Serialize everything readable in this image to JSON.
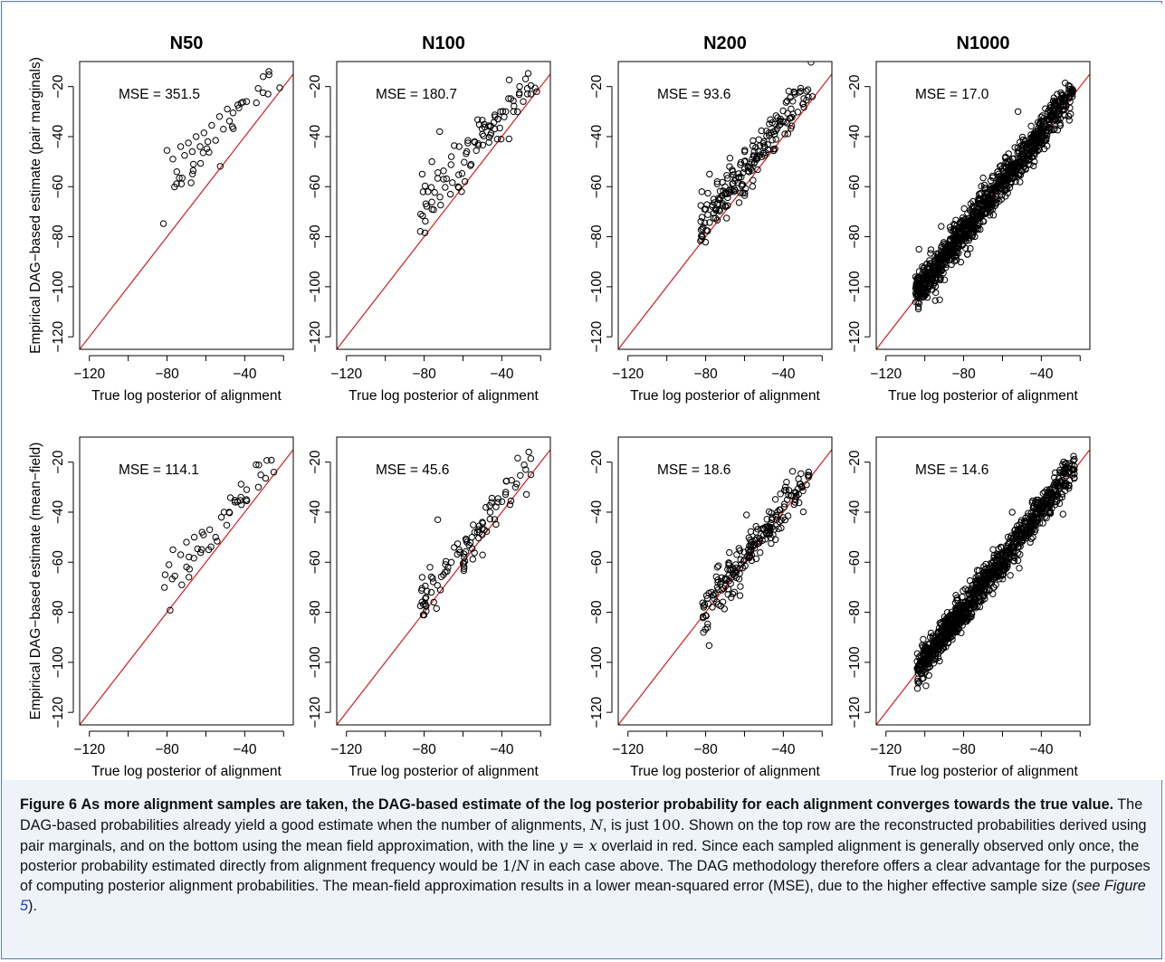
{
  "figure": {
    "column_titles": [
      "N50",
      "N100",
      "N200",
      "N1000"
    ],
    "row_ylabels": [
      "Empirical DAG−based estimate (pair marginals)",
      "Empirical DAG−based estimate (mean−field)"
    ],
    "xlabel": "True log posterior of alignment",
    "x_ticks": [
      "−120",
      "−80",
      "−40"
    ],
    "y_ticks": [
      "−20",
      "−40",
      "−60",
      "−80",
      "−100",
      "−120"
    ],
    "colors": {
      "reference_line": "#e0191c",
      "points": "#000000"
    }
  },
  "chart_data": [
    {
      "type": "scatter",
      "row": "pair marginals",
      "column": "N50",
      "mse_label": "MSE =  351.5",
      "reference_line": "y = x",
      "xlim": [
        -125,
        -15
      ],
      "ylim": [
        -125,
        -10
      ],
      "n_points": 50,
      "x_range": [
        -82,
        -21
      ],
      "center_offset": 14.5,
      "spread": 4.5,
      "samples": [
        [
          -80,
          -45.5
        ],
        [
          -77,
          -49
        ],
        [
          -75,
          -54
        ],
        [
          -73,
          -44
        ],
        [
          -71,
          -47.5
        ],
        [
          -69,
          -42.5
        ],
        [
          -67,
          -46
        ],
        [
          -65,
          -40
        ],
        [
          -63,
          -44
        ],
        [
          -61,
          -38.5
        ],
        [
          -59,
          -42
        ],
        [
          -57,
          -35.5
        ],
        [
          -55,
          -41.5
        ],
        [
          -53,
          -32
        ],
        [
          -51,
          -37
        ],
        [
          -49,
          -29
        ],
        [
          -46,
          -30.5
        ],
        [
          -43,
          -28.5
        ],
        [
          -39,
          -26
        ],
        [
          -34,
          -26.5
        ],
        [
          -28,
          -23
        ],
        [
          -22,
          -20.5
        ]
      ]
    },
    {
      "type": "scatter",
      "row": "pair marginals",
      "column": "N100",
      "mse_label": "MSE =  180.7",
      "reference_line": "y = x",
      "xlim": [
        -125,
        -15
      ],
      "ylim": [
        -125,
        -10
      ],
      "n_points": 100,
      "x_range": [
        -82,
        -22
      ],
      "center_offset": 10,
      "spread": 5,
      "samples": [
        [
          -81,
          -55
        ],
        [
          -78,
          -62
        ],
        [
          -76,
          -50
        ],
        [
          -72,
          -38
        ],
        [
          -70,
          -57
        ],
        [
          -66,
          -48
        ],
        [
          -62,
          -44
        ],
        [
          -58,
          -46
        ],
        [
          -54,
          -42
        ],
        [
          -50,
          -39
        ],
        [
          -46,
          -36
        ],
        [
          -42,
          -33
        ],
        [
          -38,
          -30
        ],
        [
          -34,
          -30
        ],
        [
          -29,
          -26
        ],
        [
          -25,
          -23
        ],
        [
          -22,
          -22
        ]
      ]
    },
    {
      "type": "scatter",
      "row": "pair marginals",
      "column": "N200",
      "mse_label": "MSE =  93.6",
      "reference_line": "y = x",
      "xlim": [
        -125,
        -15
      ],
      "ylim": [
        -125,
        -10
      ],
      "n_points": 200,
      "x_range": [
        -83,
        -25
      ],
      "center_offset": 6,
      "spread": 4.5,
      "samples": [
        [
          -82,
          -62
        ],
        [
          -80,
          -69
        ],
        [
          -78,
          -55
        ],
        [
          -74,
          -58
        ],
        [
          -70,
          -60
        ],
        [
          -66,
          -54
        ],
        [
          -60,
          -50
        ],
        [
          -55,
          -46
        ],
        [
          -50,
          -42
        ],
        [
          -45,
          -38
        ],
        [
          -40,
          -34
        ],
        [
          -35,
          -31
        ],
        [
          -30,
          -27
        ],
        [
          -25,
          -24
        ]
      ]
    },
    {
      "type": "scatter",
      "row": "pair marginals",
      "column": "N1000",
      "mse_label": "MSE =  17.0",
      "reference_line": "y = x",
      "xlim": [
        -125,
        -15
      ],
      "ylim": [
        -125,
        -10
      ],
      "n_points": 1000,
      "x_range": [
        -105,
        -23
      ],
      "center_offset": 1.5,
      "spread": 3.8,
      "samples": [
        [
          -103,
          -85
        ],
        [
          -93,
          -89
        ],
        [
          -85,
          -75
        ],
        [
          -80,
          -78
        ],
        [
          -75,
          -70
        ],
        [
          -70,
          -66
        ],
        [
          -65,
          -61
        ],
        [
          -60,
          -56
        ],
        [
          -55,
          -52
        ],
        [
          -50,
          -47
        ],
        [
          -45,
          -42
        ],
        [
          -40,
          -37
        ],
        [
          -35,
          -32
        ],
        [
          -30,
          -28
        ],
        [
          -24,
          -23
        ],
        [
          -52,
          -30
        ]
      ]
    },
    {
      "type": "scatter",
      "row": "mean-field",
      "column": "N50",
      "mse_label": "MSE =  114.1",
      "reference_line": "y = x",
      "xlim": [
        -125,
        -15
      ],
      "ylim": [
        -125,
        -10
      ],
      "n_points": 50,
      "x_range": [
        -82,
        -24
      ],
      "center_offset": 8,
      "spread": 3.8,
      "samples": [
        [
          -81,
          -65
        ],
        [
          -79,
          -61
        ],
        [
          -77,
          -55
        ],
        [
          -73,
          -57
        ],
        [
          -70,
          -52
        ],
        [
          -66,
          -50
        ],
        [
          -62,
          -48
        ],
        [
          -58,
          -47
        ],
        [
          -55,
          -50
        ],
        [
          -52,
          -42
        ],
        [
          -48,
          -40
        ],
        [
          -45,
          -36
        ],
        [
          -42,
          -34
        ],
        [
          -39,
          -31
        ],
        [
          -33,
          -30
        ],
        [
          -25,
          -24
        ]
      ]
    },
    {
      "type": "scatter",
      "row": "mean-field",
      "column": "N100",
      "mse_label": "MSE =  45.6",
      "reference_line": "y = x",
      "xlim": [
        -125,
        -15
      ],
      "ylim": [
        -125,
        -10
      ],
      "n_points": 100,
      "x_range": [
        -82,
        -24
      ],
      "center_offset": 4.5,
      "spread": 4.5,
      "samples": [
        [
          -81,
          -66
        ],
        [
          -79,
          -74
        ],
        [
          -77,
          -62
        ],
        [
          -73,
          -43
        ],
        [
          -70,
          -65
        ],
        [
          -66,
          -60
        ],
        [
          -62,
          -55
        ],
        [
          -58,
          -52
        ],
        [
          -54,
          -48
        ],
        [
          -50,
          -44
        ],
        [
          -46,
          -40
        ],
        [
          -42,
          -36
        ],
        [
          -38,
          -32
        ],
        [
          -33,
          -30
        ],
        [
          -25,
          -25
        ]
      ]
    },
    {
      "type": "scatter",
      "row": "mean-field",
      "column": "N200",
      "mse_label": "MSE =  18.6",
      "reference_line": "y = x",
      "xlim": [
        -125,
        -15
      ],
      "ylim": [
        -125,
        -10
      ],
      "n_points": 200,
      "x_range": [
        -82,
        -26
      ],
      "center_offset": 1.5,
      "spread": 4,
      "samples": [
        [
          -81,
          -78
        ],
        [
          -79,
          -86
        ],
        [
          -77,
          -72
        ],
        [
          -74,
          -62
        ],
        [
          -70,
          -67
        ],
        [
          -66,
          -63
        ],
        [
          -62,
          -59
        ],
        [
          -58,
          -55
        ],
        [
          -54,
          -51
        ],
        [
          -50,
          -47
        ],
        [
          -46,
          -43
        ],
        [
          -42,
          -39
        ],
        [
          -38,
          -35
        ],
        [
          -34,
          -32
        ],
        [
          -27,
          -26
        ]
      ]
    },
    {
      "type": "scatter",
      "row": "mean-field",
      "column": "N1000",
      "mse_label": "MSE =  14.6",
      "reference_line": "y = x",
      "xlim": [
        -125,
        -15
      ],
      "ylim": [
        -125,
        -10
      ],
      "n_points": 1000,
      "x_range": [
        -104,
        -22
      ],
      "center_offset": 1,
      "spread": 3.6,
      "samples": [
        [
          -103,
          -98
        ],
        [
          -93,
          -88
        ],
        [
          -85,
          -85
        ],
        [
          -80,
          -77
        ],
        [
          -75,
          -72
        ],
        [
          -70,
          -67
        ],
        [
          -65,
          -62
        ],
        [
          -60,
          -57
        ],
        [
          -55,
          -53
        ],
        [
          -50,
          -47
        ],
        [
          -45,
          -42
        ],
        [
          -40,
          -38
        ],
        [
          -35,
          -32
        ],
        [
          -30,
          -28
        ],
        [
          -23,
          -23
        ],
        [
          -55,
          -40
        ]
      ]
    }
  ],
  "caption": {
    "label": "Figure 6",
    "headline": "As more alignment samples are taken, the DAG-based estimate of the log posterior probability for each alignment converges towards the true value.",
    "t1": "The DAG-based probabilities already yield a good estimate when the number of alignments,",
    "n": "N",
    "t2": ", is just",
    "hundred": "100",
    "t3": ". Shown on the top row are the reconstructed probabilities derived using pair marginals, and on the bottom using the mean field approximation, with the line",
    "eq": "y = x",
    "t4": "overlaid in red. Since each sampled alignment is generally observed only once, the posterior probability estimated directly from alignment frequency would be",
    "one_over": "1/",
    "n2": "N",
    "t5": "in each case above. The DAG methodology therefore offers a clear advantage for the purposes of computing posterior alignment probabilities. The mean-field approximation results in a lower mean-squared error (MSE), due to the higher effective sample size (",
    "see": "see Figure",
    "figref": "5",
    "t6": ")."
  }
}
